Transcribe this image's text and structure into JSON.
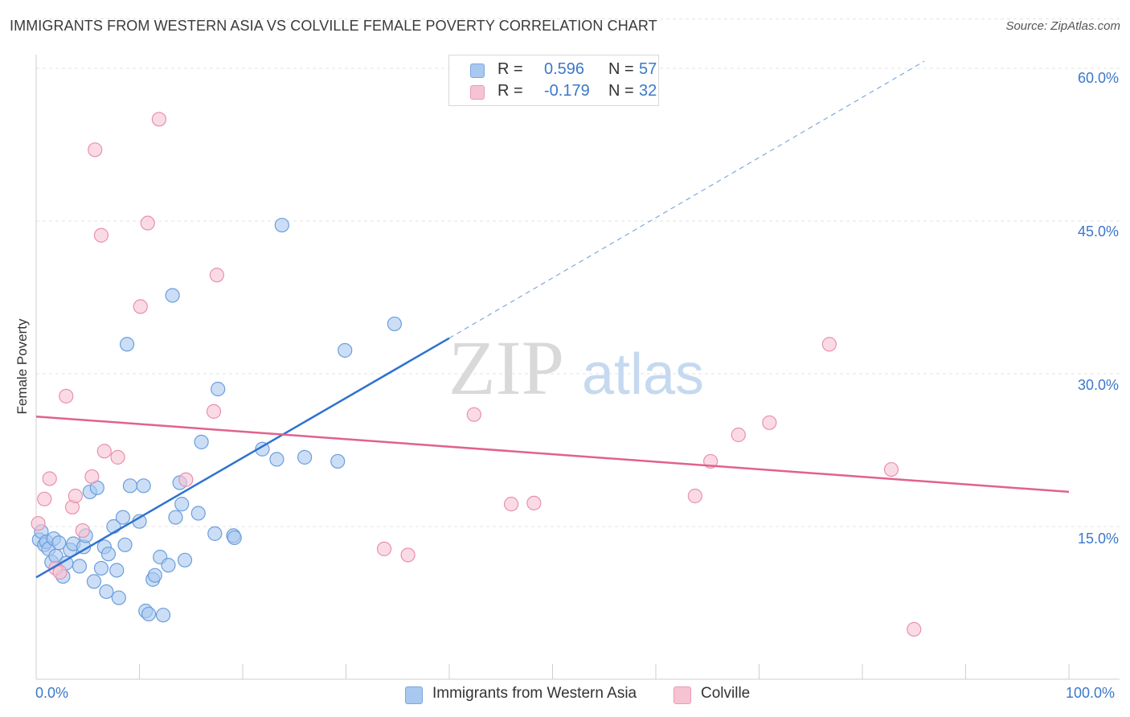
{
  "title": "IMMIGRANTS FROM WESTERN ASIA VS COLVILLE FEMALE POVERTY CORRELATION CHART",
  "source": "Source: ZipAtlas.com",
  "watermark": {
    "zip": "ZIP",
    "atlas": "atlas"
  },
  "stats": [
    {
      "r_label": "R =",
      "r_value": "0.596",
      "n_label": "N =",
      "n_value": "57",
      "color": "#a9c8f0",
      "border": "#7aa7e0"
    },
    {
      "r_label": "R =",
      "r_value": "-0.179",
      "n_label": "N =",
      "n_value": "32",
      "color": "#f6c3d2",
      "border": "#ec9ab4"
    }
  ],
  "legend": [
    {
      "label": "Immigrants from Western Asia",
      "color": "#a9c8f0",
      "border": "#7aa7e0"
    },
    {
      "label": "Colville",
      "color": "#f6c3d2",
      "border": "#ec9ab4"
    }
  ],
  "y_tick_labels": [
    "60.0%",
    "45.0%",
    "30.0%",
    "15.0%"
  ],
  "x_tick_labels": [
    "0.0%",
    "100.0%"
  ],
  "chart_data": {
    "type": "scatter",
    "title": "IMMIGRANTS FROM WESTERN ASIA VS COLVILLE FEMALE POVERTY CORRELATION CHART",
    "xlabel": "",
    "ylabel": "Female Poverty",
    "xlim": [
      0,
      100
    ],
    "ylim": [
      0,
      65
    ],
    "grid": true,
    "y_ticks": [
      15,
      30,
      45,
      60
    ],
    "x_ticks": [
      0,
      10,
      20,
      30,
      40,
      50,
      60,
      70,
      80,
      90,
      100
    ],
    "series": [
      {
        "name": "Immigrants from Western Asia",
        "color": "#a9c8f0",
        "stroke": "#6b9edc",
        "trend": {
          "x0": 0,
          "y0": 10.0,
          "x1": 40.0,
          "y1": 33.5,
          "extend_to_x": 86.0,
          "extend_to_y": 60.7,
          "color": "#2f72cf"
        },
        "points": [
          [
            0.3,
            13.7
          ],
          [
            0.5,
            14.5
          ],
          [
            0.8,
            13.2
          ],
          [
            1.0,
            13.5
          ],
          [
            1.2,
            12.8
          ],
          [
            1.5,
            11.5
          ],
          [
            1.7,
            13.8
          ],
          [
            1.9,
            12.1
          ],
          [
            2.2,
            13.4
          ],
          [
            2.6,
            10.1
          ],
          [
            2.9,
            11.4
          ],
          [
            3.3,
            12.7
          ],
          [
            3.6,
            13.3
          ],
          [
            4.2,
            11.1
          ],
          [
            4.6,
            13.0
          ],
          [
            4.8,
            14.1
          ],
          [
            5.2,
            18.4
          ],
          [
            5.6,
            9.6
          ],
          [
            5.9,
            18.8
          ],
          [
            6.3,
            10.9
          ],
          [
            6.6,
            13.0
          ],
          [
            6.8,
            8.6
          ],
          [
            7.0,
            12.3
          ],
          [
            7.5,
            15.0
          ],
          [
            7.8,
            10.7
          ],
          [
            8.0,
            8.0
          ],
          [
            8.4,
            15.9
          ],
          [
            8.6,
            13.2
          ],
          [
            8.8,
            32.9
          ],
          [
            9.1,
            19.0
          ],
          [
            10.0,
            15.5
          ],
          [
            10.4,
            19.0
          ],
          [
            10.6,
            6.7
          ],
          [
            10.9,
            6.4
          ],
          [
            11.3,
            9.8
          ],
          [
            11.5,
            10.2
          ],
          [
            12.0,
            12.0
          ],
          [
            12.3,
            6.3
          ],
          [
            12.8,
            11.2
          ],
          [
            13.2,
            37.7
          ],
          [
            13.5,
            15.9
          ],
          [
            13.9,
            19.3
          ],
          [
            14.1,
            17.2
          ],
          [
            14.4,
            11.7
          ],
          [
            15.7,
            16.3
          ],
          [
            16.0,
            23.3
          ],
          [
            17.3,
            14.3
          ],
          [
            17.6,
            28.5
          ],
          [
            19.1,
            14.1
          ],
          [
            19.2,
            13.9
          ],
          [
            21.9,
            22.6
          ],
          [
            23.3,
            21.6
          ],
          [
            23.8,
            44.6
          ],
          [
            26.0,
            21.8
          ],
          [
            29.2,
            21.4
          ],
          [
            29.9,
            32.3
          ],
          [
            34.7,
            34.9
          ]
        ]
      },
      {
        "name": "Colville",
        "color": "#f6c3d2",
        "stroke": "#ea8fae",
        "trend": {
          "x0": 0,
          "y0": 25.8,
          "x1": 100,
          "y1": 18.4,
          "color": "#e0628d"
        },
        "points": [
          [
            0.2,
            15.3
          ],
          [
            0.8,
            17.7
          ],
          [
            1.3,
            19.7
          ],
          [
            1.9,
            10.9
          ],
          [
            2.3,
            10.5
          ],
          [
            2.9,
            27.8
          ],
          [
            3.5,
            16.9
          ],
          [
            3.8,
            18.0
          ],
          [
            4.5,
            14.6
          ],
          [
            5.4,
            19.9
          ],
          [
            5.7,
            52.0
          ],
          [
            6.3,
            43.6
          ],
          [
            6.6,
            22.4
          ],
          [
            7.9,
            21.8
          ],
          [
            10.1,
            36.6
          ],
          [
            10.8,
            44.8
          ],
          [
            11.9,
            55.0
          ],
          [
            14.5,
            19.6
          ],
          [
            17.2,
            26.3
          ],
          [
            17.5,
            39.7
          ],
          [
            33.7,
            12.8
          ],
          [
            36.0,
            12.2
          ],
          [
            42.4,
            26.0
          ],
          [
            46.0,
            17.2
          ],
          [
            48.2,
            17.3
          ],
          [
            63.8,
            18.0
          ],
          [
            65.3,
            21.4
          ],
          [
            68.0,
            24.0
          ],
          [
            71.0,
            25.2
          ],
          [
            76.8,
            32.9
          ],
          [
            82.8,
            20.6
          ],
          [
            85.0,
            4.9
          ]
        ]
      }
    ]
  }
}
